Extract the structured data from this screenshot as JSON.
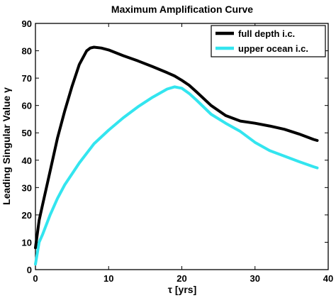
{
  "chart_data": {
    "type": "line",
    "title": "Maximum Amplification Curve",
    "xlabel": "τ [yrs]",
    "ylabel": "Leading Singular Value γ",
    "xlim": [
      0,
      40
    ],
    "ylim": [
      0,
      90
    ],
    "xticks": [
      0,
      10,
      20,
      30,
      40
    ],
    "yticks": [
      0,
      10,
      20,
      30,
      40,
      50,
      60,
      70,
      80,
      90
    ],
    "grid": false,
    "legend_position": "top-right",
    "series": [
      {
        "name": "full depth i.c.",
        "color": "#000000",
        "x": [
          0,
          0.5,
          1,
          2,
          3,
          4,
          5,
          6,
          7,
          7.5,
          8,
          9,
          10,
          12,
          14,
          16,
          18,
          19,
          20,
          21,
          22,
          24,
          26,
          28,
          30,
          32,
          34,
          36,
          38,
          38.5
        ],
        "y": [
          8,
          18,
          24,
          36,
          48,
          58,
          67,
          75,
          80,
          81,
          81.3,
          81,
          80.3,
          78.2,
          76.3,
          74.2,
          72,
          70.8,
          69.2,
          67.4,
          65,
          60,
          56.3,
          54.3,
          53.5,
          52.5,
          51.3,
          49.6,
          47.6,
          47.2
        ]
      },
      {
        "name": "upper ocean i.c.",
        "color": "#33e5ef",
        "x": [
          0,
          0.5,
          1,
          2,
          3,
          4,
          5,
          6,
          8,
          10,
          12,
          14,
          16,
          18,
          19,
          20,
          21,
          22,
          24,
          26,
          28,
          30,
          32,
          34,
          36,
          38,
          38.5
        ],
        "y": [
          2,
          10,
          13,
          20,
          26,
          31,
          35,
          39,
          46,
          51,
          55.5,
          59.5,
          63,
          66,
          66.8,
          66.3,
          64.4,
          62,
          56.8,
          53.5,
          50.5,
          46.5,
          43.5,
          41.5,
          39.5,
          37.6,
          37.2
        ]
      }
    ]
  }
}
